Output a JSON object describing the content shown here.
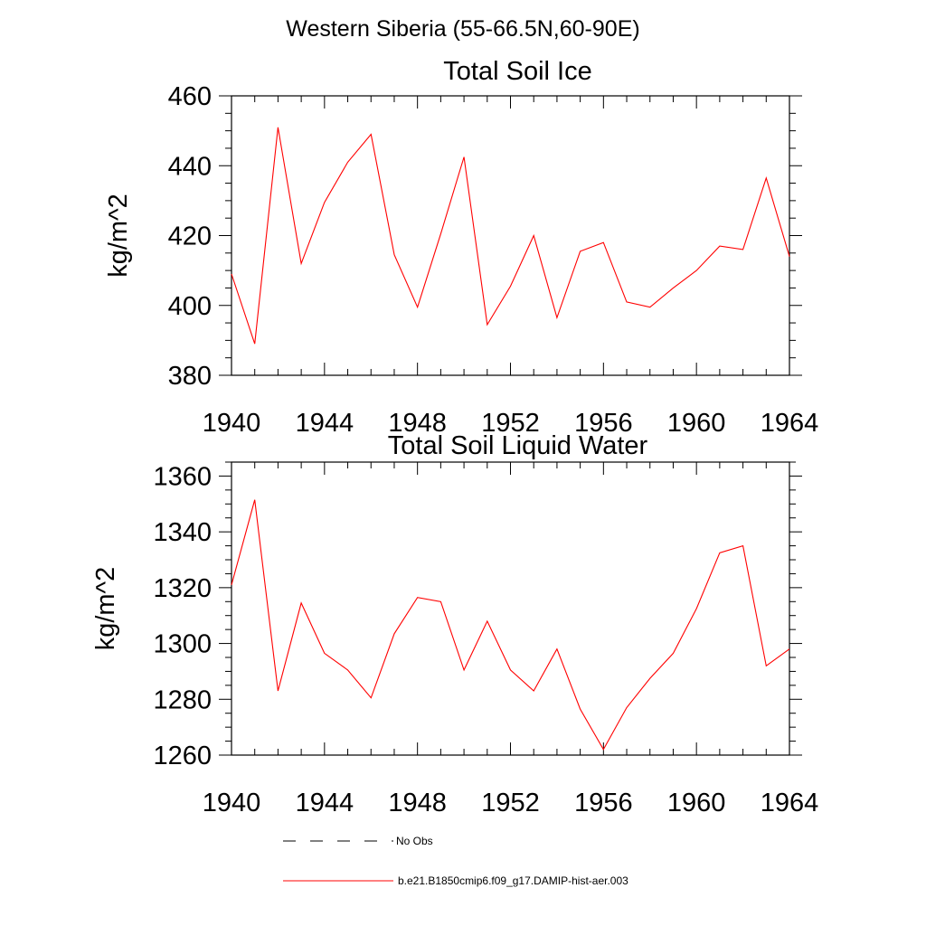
{
  "figure": {
    "title": "Western Siberia (55-66.5N,60-90E)"
  },
  "chart_data": [
    {
      "type": "line",
      "title": "Total Soil Ice",
      "xlabel": "",
      "ylabel": "kg/m^2",
      "xlim": [
        1940,
        1964
      ],
      "ylim": [
        380,
        460
      ],
      "xticks": [
        1940,
        1944,
        1948,
        1952,
        1956,
        1960,
        1964
      ],
      "yticks": [
        380,
        400,
        420,
        440,
        460
      ],
      "grid": false,
      "series": [
        {
          "name": "b.e21.B1850cmip6.f09_g17.DAMIP-hist-aer.003",
          "color": "#ff0000",
          "x": [
            1940,
            1941,
            1942,
            1943,
            1944,
            1945,
            1946,
            1947,
            1948,
            1949,
            1950,
            1951,
            1952,
            1953,
            1954,
            1955,
            1956,
            1957,
            1958,
            1959,
            1960,
            1961,
            1962,
            1963,
            1964
          ],
          "values": [
            409,
            389,
            451,
            412,
            429.5,
            441,
            449,
            414.5,
            399.5,
            420.5,
            442.5,
            394.5,
            405.5,
            420,
            396.5,
            415.5,
            418,
            401,
            399.5,
            405,
            410,
            417,
            416,
            436.5,
            414
          ]
        }
      ]
    },
    {
      "type": "line",
      "title": "Total Soil Liquid Water",
      "xlabel": "",
      "ylabel": "kg/m^2",
      "xlim": [
        1940,
        1964
      ],
      "ylim": [
        1260,
        1365
      ],
      "xticks": [
        1940,
        1944,
        1948,
        1952,
        1956,
        1960,
        1964
      ],
      "yticks": [
        1260,
        1280,
        1300,
        1320,
        1340,
        1360
      ],
      "grid": false,
      "series": [
        {
          "name": "b.e21.B1850cmip6.f09_g17.DAMIP-hist-aer.003",
          "color": "#ff0000",
          "x": [
            1940,
            1941,
            1942,
            1943,
            1944,
            1945,
            1946,
            1947,
            1948,
            1949,
            1950,
            1951,
            1952,
            1953,
            1954,
            1955,
            1956,
            1957,
            1958,
            1959,
            1960,
            1961,
            1962,
            1963,
            1964
          ],
          "values": [
            1321,
            1351.5,
            1283,
            1314.5,
            1296.5,
            1290.5,
            1280.5,
            1303.5,
            1316.5,
            1315,
            1290.5,
            1308,
            1290.5,
            1283,
            1298,
            1276.5,
            1262,
            1277,
            1287.5,
            1296.5,
            1312.5,
            1332.5,
            1335,
            1292,
            1298
          ]
        }
      ]
    }
  ],
  "legend": {
    "placement": "bottom",
    "items": [
      {
        "label": "No Obs",
        "style": "dashed",
        "color": "#000000"
      },
      {
        "label": "b.e21.B1850cmip6.f09_g17.DAMIP-hist-aer.003",
        "style": "solid",
        "color": "#ff0000"
      }
    ]
  }
}
